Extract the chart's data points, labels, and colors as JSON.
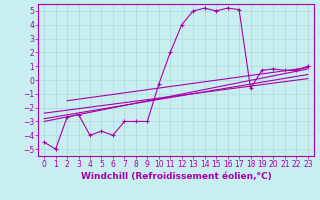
{
  "xlabel": "Windchill (Refroidissement éolien,°C)",
  "xlim": [
    -0.5,
    23.5
  ],
  "ylim": [
    -5.5,
    5.5
  ],
  "xticks": [
    0,
    1,
    2,
    3,
    4,
    5,
    6,
    7,
    8,
    9,
    10,
    11,
    12,
    13,
    14,
    15,
    16,
    17,
    18,
    19,
    20,
    21,
    22,
    23
  ],
  "yticks": [
    -5,
    -4,
    -3,
    -2,
    -1,
    0,
    1,
    2,
    3,
    4,
    5
  ],
  "bg_color": "#c8eef0",
  "grid_color": "#b0d8da",
  "line_color": "#aa00aa",
  "curve1_x": [
    0,
    1,
    2,
    3,
    4,
    5,
    6,
    7,
    8,
    9,
    10,
    11,
    12,
    13,
    14,
    15,
    16,
    17,
    18,
    19,
    20,
    21,
    22,
    23
  ],
  "curve1_y": [
    -4.5,
    -5.0,
    -2.7,
    -2.5,
    -4.0,
    -3.7,
    -4.0,
    -3.0,
    -3.0,
    -3.0,
    -0.3,
    2.0,
    4.0,
    5.0,
    5.2,
    5.0,
    5.2,
    5.1,
    -0.6,
    0.7,
    0.8,
    0.7,
    0.7,
    1.0
  ],
  "line1_x": [
    0,
    23
  ],
  "line1_y": [
    -2.8,
    0.4
  ],
  "line2_x": [
    0,
    23
  ],
  "line2_y": [
    -2.4,
    0.1
  ],
  "line3_x": [
    0,
    23
  ],
  "line3_y": [
    -3.0,
    0.8
  ],
  "line4_x": [
    2,
    23
  ],
  "line4_y": [
    -1.5,
    0.9
  ],
  "font_color": "#aa00aa",
  "tick_fontsize": 5.5,
  "label_fontsize": 6.5
}
